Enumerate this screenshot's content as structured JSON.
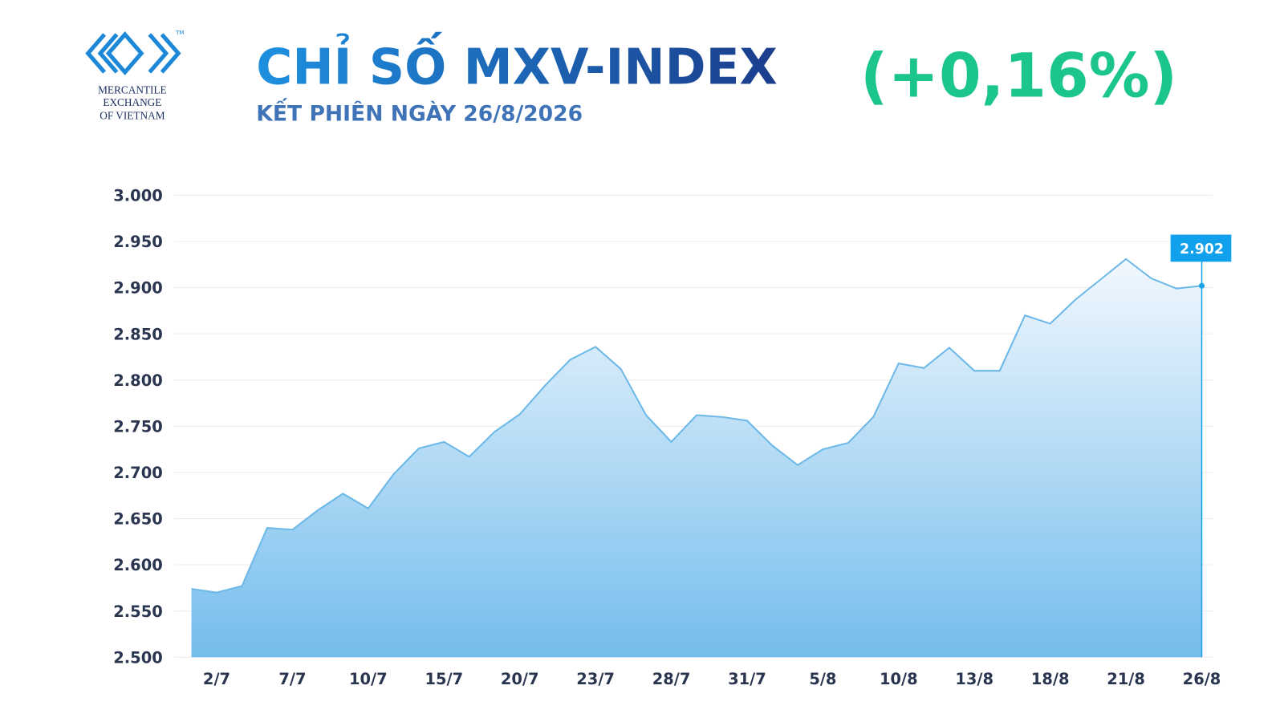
{
  "chart_data": {
    "type": "area",
    "logo_text": [
      "MERCANTILE",
      "EXCHANGE",
      "OF VIETNAM"
    ],
    "logo_mark": "TM",
    "title": "CHỈ SỐ MXV-INDEX",
    "subtitle": "KẾT PHIÊN NGÀY 26/8/2026",
    "change": "(+0,16%)",
    "categories": [
      null,
      "2/7",
      null,
      null,
      "7/7",
      null,
      null,
      "10/7",
      null,
      null,
      "15/7",
      null,
      null,
      "20/7",
      null,
      null,
      "23/7",
      null,
      null,
      "28/7",
      null,
      null,
      "31/7",
      null,
      null,
      "5/8",
      null,
      null,
      "10/8",
      null,
      null,
      "13/8",
      null,
      null,
      "18/8",
      null,
      null,
      "21/8",
      null,
      null,
      "26/8"
    ],
    "values": [
      2574,
      2570,
      2577,
      2640,
      2638,
      2659,
      2677,
      2661,
      2698,
      2726,
      2733,
      2717,
      2744,
      2763,
      2794,
      2822,
      2836,
      2812,
      2762,
      2733,
      2762,
      2760,
      2756,
      2729,
      2708,
      2725,
      2732,
      2760,
      2818,
      2813,
      2835,
      2810,
      2810,
      2870,
      2861,
      2887,
      2909,
      2931,
      2910,
      2899,
      2902
    ],
    "value_labels": [
      null,
      null,
      null,
      null,
      null,
      null,
      null,
      null,
      null,
      null,
      null,
      null,
      null,
      null,
      null,
      null,
      null,
      null,
      null,
      null,
      null,
      null,
      null,
      null,
      null,
      null,
      null,
      null,
      null,
      null,
      null,
      null,
      null,
      null,
      null,
      null,
      null,
      null,
      null,
      null,
      "2.902"
    ],
    "color": "#6cb8e8",
    "ylim": [
      2500,
      3000
    ],
    "yticks": [
      {
        "value": 2500,
        "label": "2.500"
      },
      {
        "value": 2550,
        "label": "2.550"
      },
      {
        "value": 2600,
        "label": "2.600"
      },
      {
        "value": 2650,
        "label": "2.650"
      },
      {
        "value": 2700,
        "label": "2.700"
      },
      {
        "value": 2750,
        "label": "2.750"
      },
      {
        "value": 2800,
        "label": "2.800"
      },
      {
        "value": 2850,
        "label": "2.850"
      },
      {
        "value": 2900,
        "label": "2.900"
      },
      {
        "value": 2950,
        "label": "2.950"
      },
      {
        "value": 3000,
        "label": "3.000"
      }
    ],
    "grid": true
  }
}
